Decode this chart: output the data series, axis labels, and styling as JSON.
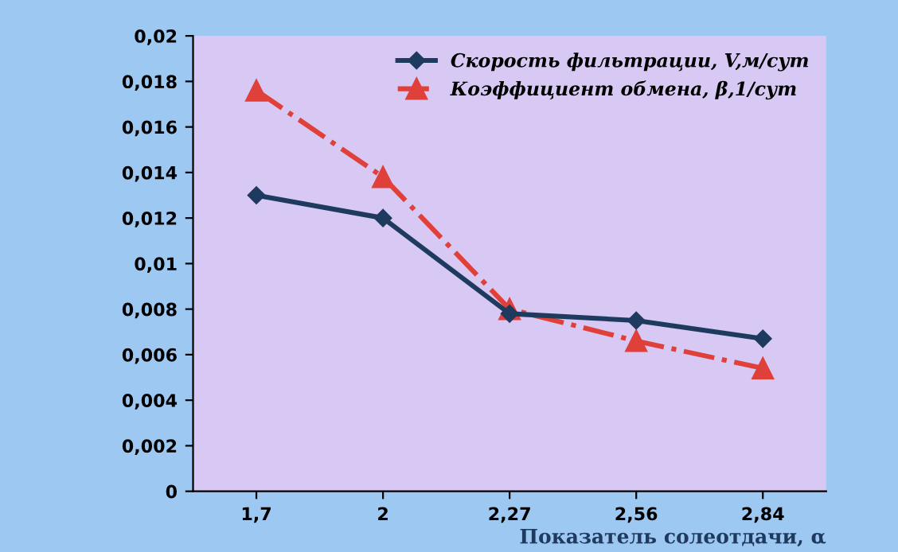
{
  "chart_data": {
    "type": "line",
    "xlabel": "Показатель солеотдачи, α",
    "categories": [
      "1,7",
      "2",
      "2,27",
      "2,56",
      "2,84"
    ],
    "series": [
      {
        "name": "Скорость фильтрации, V,м/сут",
        "color": "#1f3a5f",
        "values": [
          0.013,
          0.012,
          0.0078,
          0.0075,
          0.0067
        ],
        "marker": "diamond",
        "line_style": "solid"
      },
      {
        "name": "Коэффициент обмена, β,1/сут",
        "color": "#e0403a",
        "values": [
          0.0176,
          0.0138,
          0.008,
          0.0066,
          0.0054
        ],
        "marker": "triangle",
        "line_style": "dashdot"
      }
    ],
    "ylim": [
      0,
      0.02
    ],
    "yticks": [
      0,
      {
        "value": 0.002,
        "label": "0,002"
      },
      {
        "value": 0.004,
        "label": "0,004"
      },
      {
        "value": 0.006,
        "label": "0,006"
      },
      {
        "value": 0.008,
        "label": "0,008"
      },
      {
        "value": 0.01,
        "label": "0,01"
      },
      {
        "value": 0.012,
        "label": "0,012"
      },
      {
        "value": 0.014,
        "label": "0,014"
      },
      {
        "value": 0.016,
        "label": "0,016"
      },
      {
        "value": 0.018,
        "label": "0,018"
      },
      {
        "value": 0.02,
        "label": "0,02"
      }
    ],
    "legend": "top right",
    "grid": false
  }
}
